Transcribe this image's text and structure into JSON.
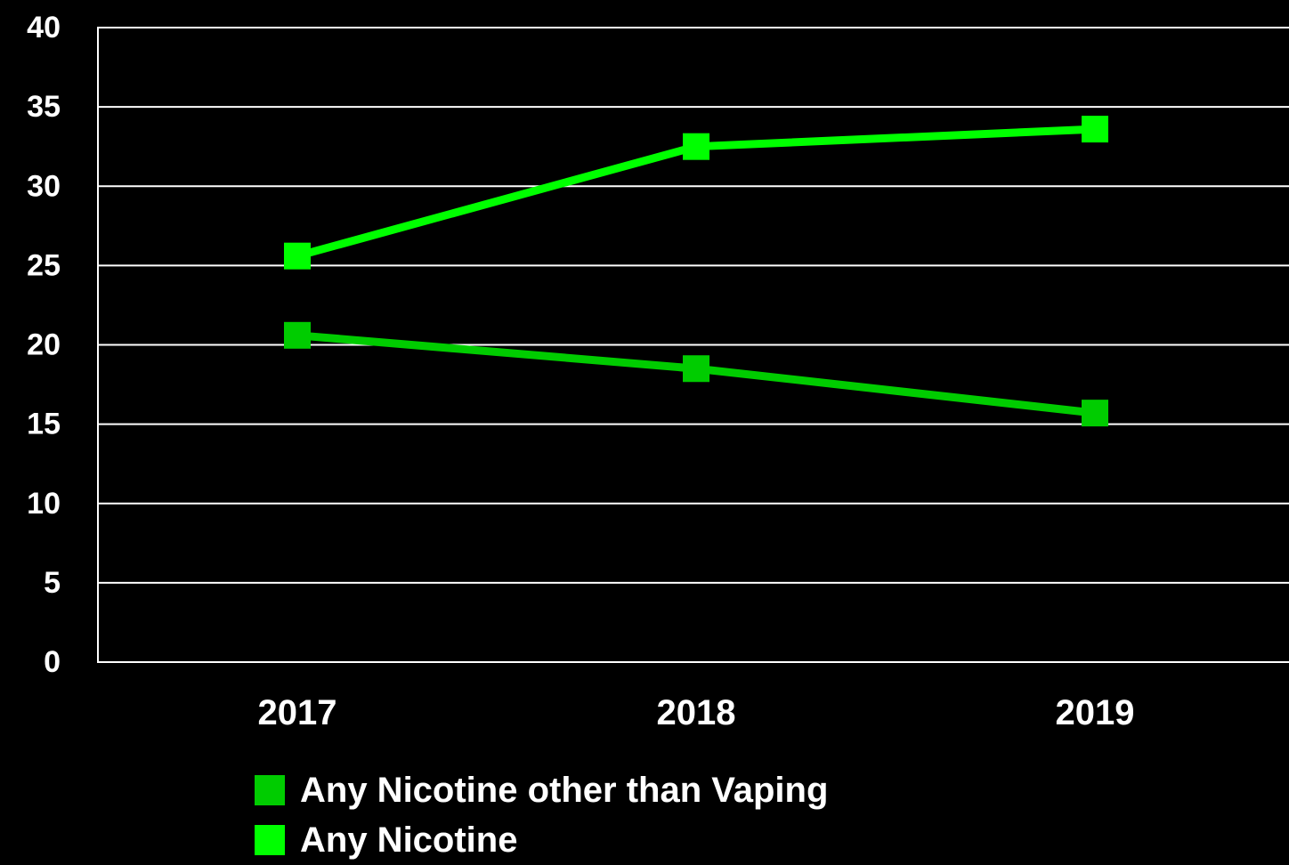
{
  "chart_data": {
    "type": "line",
    "categories": [
      "2017",
      "2018",
      "2019"
    ],
    "series": [
      {
        "name": "Any Nicotine other than Vaping",
        "values": [
          20.6,
          18.5,
          15.7
        ],
        "color": "#00cc00"
      },
      {
        "name": "Any Nicotine",
        "values": [
          25.6,
          32.5,
          33.6
        ],
        "color": "#00ff00"
      }
    ],
    "title": "",
    "xlabel": "",
    "ylabel": "",
    "ylim": [
      0,
      40
    ],
    "yticks": [
      "0",
      "5",
      "10",
      "15",
      "20",
      "25",
      "30",
      "35",
      "40"
    ],
    "grid": true,
    "legend_position": "bottom",
    "background": "#000000",
    "grid_color": "#ffffff",
    "marker": "square"
  }
}
